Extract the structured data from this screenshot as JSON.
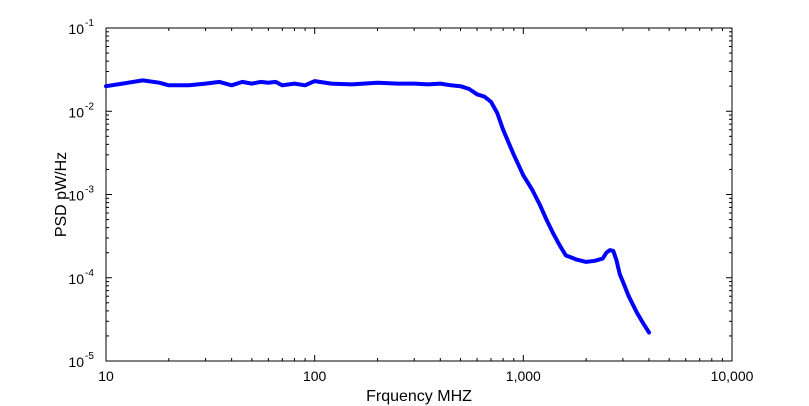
{
  "chart_data": {
    "type": "line",
    "title": "",
    "xlabel": "Frquency MHZ",
    "ylabel": "PSD pW/Hz",
    "xscale": "log",
    "yscale": "log",
    "xlim": [
      10,
      10000
    ],
    "ylim": [
      1e-05,
      0.1
    ],
    "grid": false,
    "legend": "none",
    "x_ticks": [
      {
        "value": 10,
        "label": "10"
      },
      {
        "value": 100,
        "label": "100"
      },
      {
        "value": 1000,
        "label": "1,000"
      },
      {
        "value": 10000,
        "label": "10,000"
      }
    ],
    "y_ticks": [
      {
        "value": 1e-05,
        "base": "10",
        "exp": "-5"
      },
      {
        "value": 0.0001,
        "base": "10",
        "exp": "-4"
      },
      {
        "value": 0.001,
        "base": "10",
        "exp": "-3"
      },
      {
        "value": 0.01,
        "base": "10",
        "exp": "-2"
      },
      {
        "value": 0.1,
        "base": "10",
        "exp": "-1"
      }
    ],
    "series": [
      {
        "color": "#0000ff",
        "x": [
          10,
          12,
          15,
          18,
          20,
          25,
          30,
          35,
          40,
          45,
          50,
          55,
          60,
          65,
          70,
          80,
          90,
          100,
          120,
          150,
          200,
          250,
          300,
          350,
          400,
          450,
          500,
          550,
          600,
          650,
          700,
          750,
          800,
          850,
          900,
          1000,
          1100,
          1200,
          1300,
          1400,
          1500,
          1600,
          1700,
          1800,
          1900,
          2000,
          2200,
          2400,
          2500,
          2600,
          2700,
          2800,
          2900,
          3000,
          3200,
          3500,
          3800,
          4000
        ],
        "y": [
          0.02,
          0.0215,
          0.0235,
          0.022,
          0.0205,
          0.0205,
          0.0215,
          0.0225,
          0.0205,
          0.0225,
          0.0215,
          0.0225,
          0.022,
          0.0225,
          0.0205,
          0.0215,
          0.0205,
          0.023,
          0.0215,
          0.021,
          0.022,
          0.0215,
          0.0215,
          0.021,
          0.0215,
          0.0205,
          0.02,
          0.0185,
          0.016,
          0.015,
          0.013,
          0.0095,
          0.006,
          0.0042,
          0.003,
          0.0017,
          0.00115,
          0.00075,
          0.00048,
          0.00033,
          0.00024,
          0.000185,
          0.000175,
          0.000165,
          0.00016,
          0.000155,
          0.00016,
          0.00017,
          0.0002,
          0.000215,
          0.00021,
          0.00016,
          0.00011,
          9e-05,
          6e-05,
          3.8e-05,
          2.7e-05,
          2.2e-05
        ]
      }
    ]
  }
}
